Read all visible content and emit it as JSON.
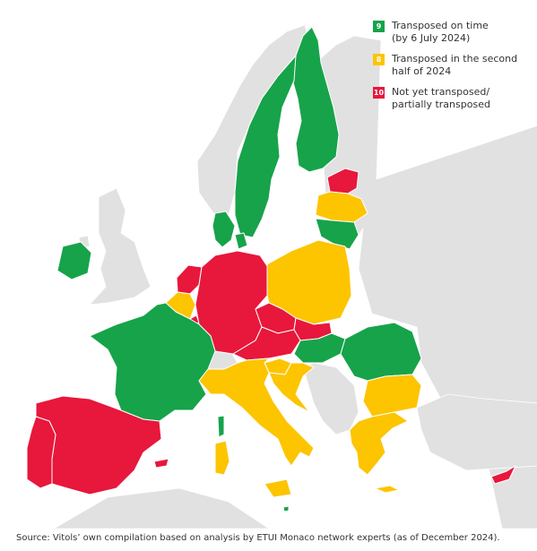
{
  "colors": {
    "on_time": "#17a34a",
    "second_half": "#fdc400",
    "not_yet": "#e8173c",
    "non_eu": "#e1e1e1",
    "sea": "#ffffff"
  },
  "legend": [
    {
      "count": "9",
      "label": "Transposed on time\n(by 6 July 2024)",
      "status": "on_time"
    },
    {
      "count": "8",
      "label": "Transposed in the second\nhalf of 2024",
      "status": "second_half"
    },
    {
      "count": "10",
      "label": "Not yet transposed/\npartially transposed",
      "status": "not_yet"
    }
  ],
  "countries": [
    {
      "name": "Finland",
      "status": "on_time"
    },
    {
      "name": "Sweden",
      "status": "on_time"
    },
    {
      "name": "Denmark",
      "status": "on_time"
    },
    {
      "name": "Ireland",
      "status": "on_time"
    },
    {
      "name": "France",
      "status": "on_time"
    },
    {
      "name": "Lithuania",
      "status": "on_time"
    },
    {
      "name": "Hungary",
      "status": "on_time"
    },
    {
      "name": "Romania",
      "status": "on_time"
    },
    {
      "name": "Malta",
      "status": "on_time"
    },
    {
      "name": "Latvia",
      "status": "second_half"
    },
    {
      "name": "Poland",
      "status": "second_half"
    },
    {
      "name": "Belgium",
      "status": "second_half"
    },
    {
      "name": "Slovenia",
      "status": "second_half"
    },
    {
      "name": "Croatia",
      "status": "second_half"
    },
    {
      "name": "Italy",
      "status": "second_half"
    },
    {
      "name": "Bulgaria",
      "status": "second_half"
    },
    {
      "name": "Greece",
      "status": "second_half"
    },
    {
      "name": "Estonia",
      "status": "not_yet"
    },
    {
      "name": "Netherlands",
      "status": "not_yet"
    },
    {
      "name": "Germany",
      "status": "not_yet"
    },
    {
      "name": "Luxembourg",
      "status": "not_yet"
    },
    {
      "name": "Czechia",
      "status": "not_yet"
    },
    {
      "name": "Austria",
      "status": "not_yet"
    },
    {
      "name": "Slovakia",
      "status": "not_yet"
    },
    {
      "name": "Spain",
      "status": "not_yet"
    },
    {
      "name": "Portugal",
      "status": "not_yet"
    },
    {
      "name": "Cyprus",
      "status": "not_yet"
    }
  ],
  "source": "Source: Vitols’ own compilation based on analysis by ETUI Monaco network experts (as of December 2024)."
}
